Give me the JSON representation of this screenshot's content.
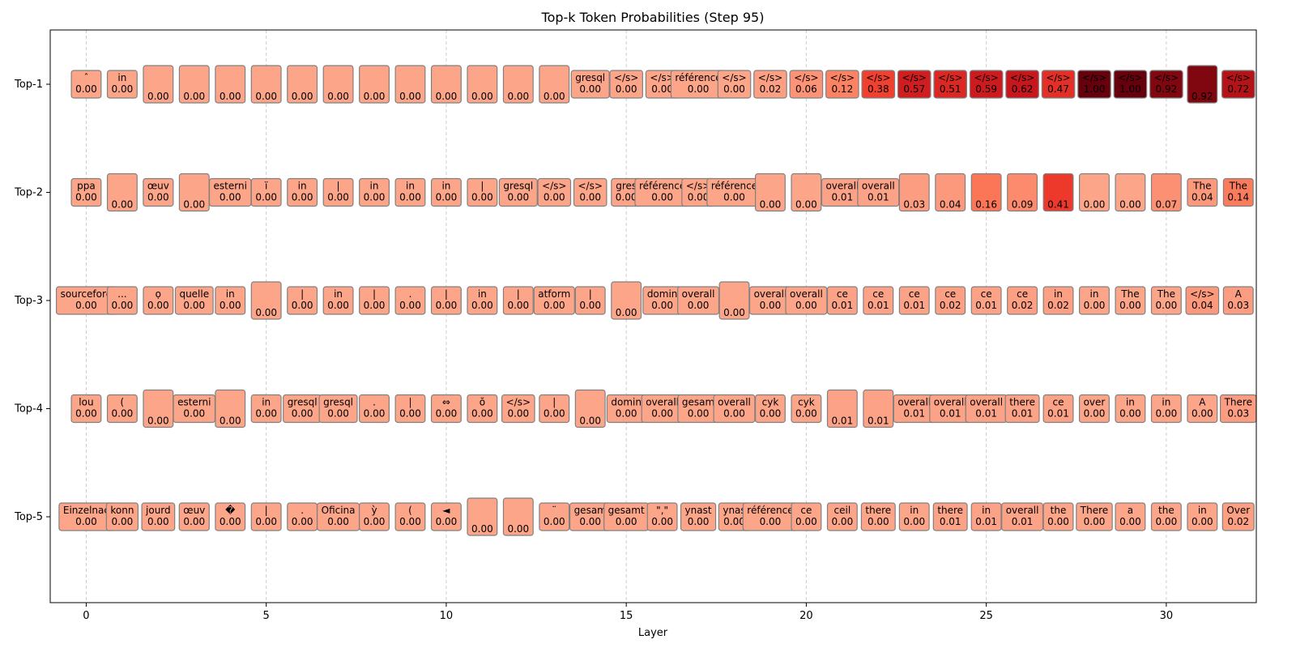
{
  "chart_data": {
    "type": "heatmap",
    "title": "Top-k Token Probabilities (Step 95)",
    "xlabel": "Layer",
    "ylabel": "",
    "xlim": [
      -1,
      32.5
    ],
    "x_ticks": [
      0,
      5,
      10,
      15,
      20,
      25,
      30
    ],
    "row_labels": [
      "Top-1",
      "Top-2",
      "Top-3",
      "Top-4",
      "Top-5"
    ],
    "colormap": "Reds",
    "grid": "vertical dashed",
    "layers": [
      0,
      1,
      2,
      3,
      4,
      5,
      6,
      7,
      8,
      9,
      10,
      11,
      12,
      13,
      14,
      15,
      16,
      17,
      18,
      19,
      20,
      21,
      22,
      23,
      24,
      25,
      26,
      27,
      28,
      29,
      30,
      31,
      32
    ],
    "rows": [
      {
        "name": "Top-1",
        "tokens": [
          "ˆ",
          "in",
          "",
          "",
          "",
          "",
          "",
          "",
          "",
          "",
          "",
          "",
          "",
          "",
          "gresql",
          "</s>",
          "</s>",
          "référence",
          "</s>",
          "</s>",
          "</s>",
          "</s>",
          "</s>",
          "</s>",
          "</s>",
          "</s>",
          "</s>",
          "</s>",
          "</s>",
          "</s>",
          "</s>",
          "",
          "</s>"
        ],
        "values": [
          0.0,
          0.0,
          0.0,
          0.0,
          0.0,
          0.0,
          0.0,
          0.0,
          0.0,
          0.0,
          0.0,
          0.0,
          0.0,
          0.0,
          0.0,
          0.0,
          0.0,
          0.0,
          0.0,
          0.02,
          0.06,
          0.12,
          0.38,
          0.57,
          0.51,
          0.59,
          0.62,
          0.47,
          1.0,
          1.0,
          0.92,
          0.92,
          0.72
        ]
      },
      {
        "name": "Top-2",
        "tokens": [
          "ppa",
          "",
          "œuv",
          "",
          "esterni",
          "ï",
          "in",
          "|",
          "in",
          "in",
          "in",
          "|",
          "gresql",
          "</s>",
          "</s>",
          "gres",
          "référence",
          "</s>",
          "référence",
          "",
          "",
          "overall",
          "overall",
          "",
          "",
          "",
          "",
          "",
          "",
          "",
          "",
          "The",
          "The"
        ],
        "values": [
          0.0,
          0.0,
          0.0,
          0.0,
          0.0,
          0.0,
          0.0,
          0.0,
          0.0,
          0.0,
          0.0,
          0.0,
          0.0,
          0.0,
          0.0,
          0.0,
          0.0,
          0.0,
          0.0,
          0.0,
          0.0,
          0.01,
          0.01,
          0.03,
          0.04,
          0.16,
          0.09,
          0.41,
          0.0,
          0.0,
          0.07,
          0.04,
          0.14
        ]
      },
      {
        "name": "Top-3",
        "tokens": [
          "sourceforg",
          "...",
          "ọ",
          "quelle",
          "in",
          "",
          "|",
          "in",
          "|",
          ".",
          "|",
          "in",
          "|",
          "atform",
          "|",
          "",
          "domin",
          "overall",
          "",
          "overall",
          "overall",
          "ce",
          "ce",
          "ce",
          "ce",
          "ce",
          "ce",
          "in",
          "in",
          "The",
          "The",
          "</s>",
          "A"
        ],
        "values": [
          0.0,
          0.0,
          0.0,
          0.0,
          0.0,
          0.0,
          0.0,
          0.0,
          0.0,
          0.0,
          0.0,
          0.0,
          0.0,
          0.0,
          0.0,
          0.0,
          0.0,
          0.0,
          0.0,
          0.0,
          0.0,
          0.01,
          0.01,
          0.01,
          0.02,
          0.01,
          0.02,
          0.02,
          0.0,
          0.0,
          0.0,
          0.04,
          0.03
        ]
      },
      {
        "name": "Top-4",
        "tokens": [
          "lou",
          "(",
          "",
          "esterni",
          "",
          "in",
          "gresql",
          "gresql",
          ".",
          "|",
          "⇔",
          "ŏ",
          "</s>",
          "|",
          "",
          "domin",
          "overall",
          "gesam",
          "overall",
          "cyk",
          "cyk",
          "",
          "",
          "overall",
          "overall",
          "overall",
          "there",
          "ce",
          "over",
          "in",
          "in",
          "A",
          "There"
        ],
        "values": [
          0.0,
          0.0,
          0.0,
          0.0,
          0.0,
          0.0,
          0.0,
          0.0,
          0.0,
          0.0,
          0.0,
          0.0,
          0.0,
          0.0,
          0.0,
          0.0,
          0.0,
          0.0,
          0.0,
          0.0,
          0.0,
          0.01,
          0.01,
          0.01,
          0.01,
          0.01,
          0.01,
          0.01,
          0.0,
          0.0,
          0.0,
          0.0,
          0.03
        ]
      },
      {
        "name": "Top-5",
        "tokens": [
          "Einzelnac",
          "konn",
          "jourd",
          "œuv",
          "�",
          "|",
          ".",
          "Oficina",
          "ỳ",
          "(",
          "◄",
          "",
          "",
          "¨",
          "gesam",
          "gesamt",
          "\",\"",
          "ynast",
          "ynas",
          "référence",
          "ce",
          "ceil",
          "there",
          "in",
          "there",
          "in",
          "overall",
          "the",
          "There",
          "a",
          "the",
          "in",
          "Over"
        ],
        "values": [
          0.0,
          0.0,
          0.0,
          0.0,
          0.0,
          0.0,
          0.0,
          0.0,
          0.0,
          0.0,
          0.0,
          0.0,
          0.0,
          0.0,
          0.0,
          0.0,
          0.0,
          0.0,
          0.0,
          0.0,
          0.0,
          0.0,
          0.0,
          0.0,
          0.01,
          0.01,
          0.01,
          0.0,
          0.0,
          0.0,
          0.0,
          0.0,
          0.02
        ]
      }
    ]
  }
}
